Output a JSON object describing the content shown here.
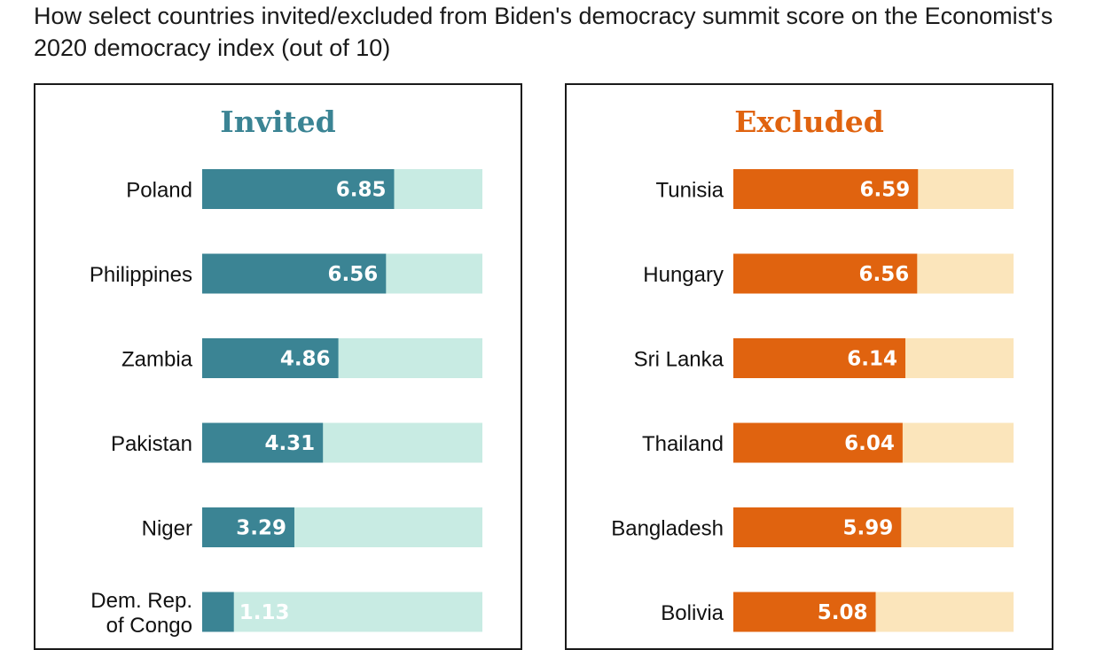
{
  "title": "How select countries invited/excluded from Biden's democracy summit score on the Economist's 2020 democracy index (out of 10)",
  "colors": {
    "invited_bar": "#3b8494",
    "invited_track": "#c8ebe3",
    "invited_value_small": "#3b8494",
    "excluded_bar": "#e0630f",
    "excluded_track": "#fbe5bb"
  },
  "chart_data": [
    {
      "type": "bar",
      "orientation": "horizontal",
      "title": "Invited",
      "title_color": "#3b8494",
      "xlim": [
        0,
        10
      ],
      "categories": [
        [
          "Poland"
        ],
        [
          "Philippines"
        ],
        [
          "Zambia"
        ],
        [
          "Pakistan"
        ],
        [
          "Niger"
        ],
        [
          "Dem. Rep.",
          "of Congo"
        ]
      ],
      "values": [
        6.85,
        6.56,
        4.86,
        4.31,
        3.29,
        1.13
      ],
      "value_labels": [
        "6.85",
        "6.56",
        "4.86",
        "4.31",
        "3.29",
        "1.13"
      ]
    },
    {
      "type": "bar",
      "orientation": "horizontal",
      "title": "Excluded",
      "title_color": "#e0630f",
      "xlim": [
        0,
        10
      ],
      "categories": [
        [
          "Tunisia"
        ],
        [
          "Hungary"
        ],
        [
          "Sri Lanka"
        ],
        [
          "Thailand"
        ],
        [
          "Bangladesh"
        ],
        [
          "Bolivia"
        ]
      ],
      "values": [
        6.59,
        6.56,
        6.14,
        6.04,
        5.99,
        5.08
      ],
      "value_labels": [
        "6.59",
        "6.56",
        "6.14",
        "6.04",
        "5.99",
        "5.08"
      ]
    }
  ]
}
